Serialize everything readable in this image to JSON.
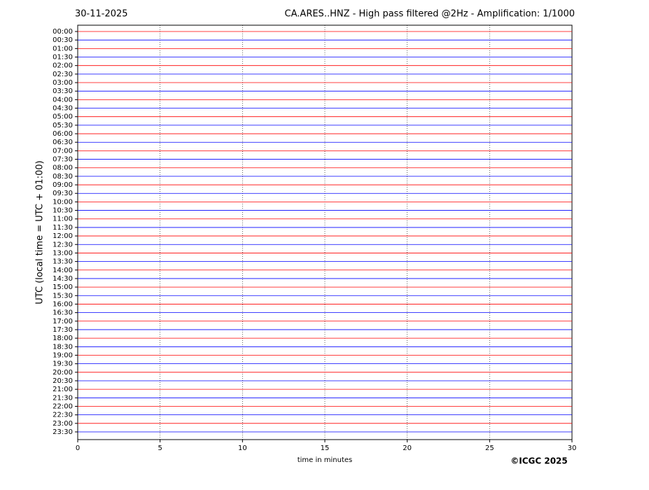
{
  "chart_data": {
    "type": "helicorder",
    "date": "30-11-2025",
    "title": "CA.ARES..HNZ - High pass filtered @2Hz - Amplification: 1/1000",
    "ylabel": "UTC (local time = UTC + 01:00)",
    "xlabel": "time in minutes",
    "credit": "©ICGC 2025",
    "categories": [
      "00:00",
      "00:30",
      "01:00",
      "01:30",
      "02:00",
      "02:30",
      "03:00",
      "03:30",
      "04:00",
      "04:30",
      "05:00",
      "05:30",
      "06:00",
      "06:30",
      "07:00",
      "07:30",
      "08:00",
      "08:30",
      "09:00",
      "09:30",
      "10:00",
      "10:30",
      "11:00",
      "11:30",
      "12:00",
      "12:30",
      "13:00",
      "13:30",
      "14:00",
      "14:30",
      "15:00",
      "15:30",
      "16:00",
      "16:30",
      "17:00",
      "17:30",
      "18:00",
      "18:30",
      "19:00",
      "19:30",
      "20:00",
      "20:30",
      "21:00",
      "21:30",
      "22:00",
      "22:30",
      "23:00",
      "23:30"
    ],
    "colors": [
      "#ff0000",
      "#0000ff"
    ],
    "xlim": [
      0,
      30
    ],
    "xticks": [
      0,
      5,
      10,
      15,
      20,
      25,
      30
    ],
    "grid": true
  }
}
